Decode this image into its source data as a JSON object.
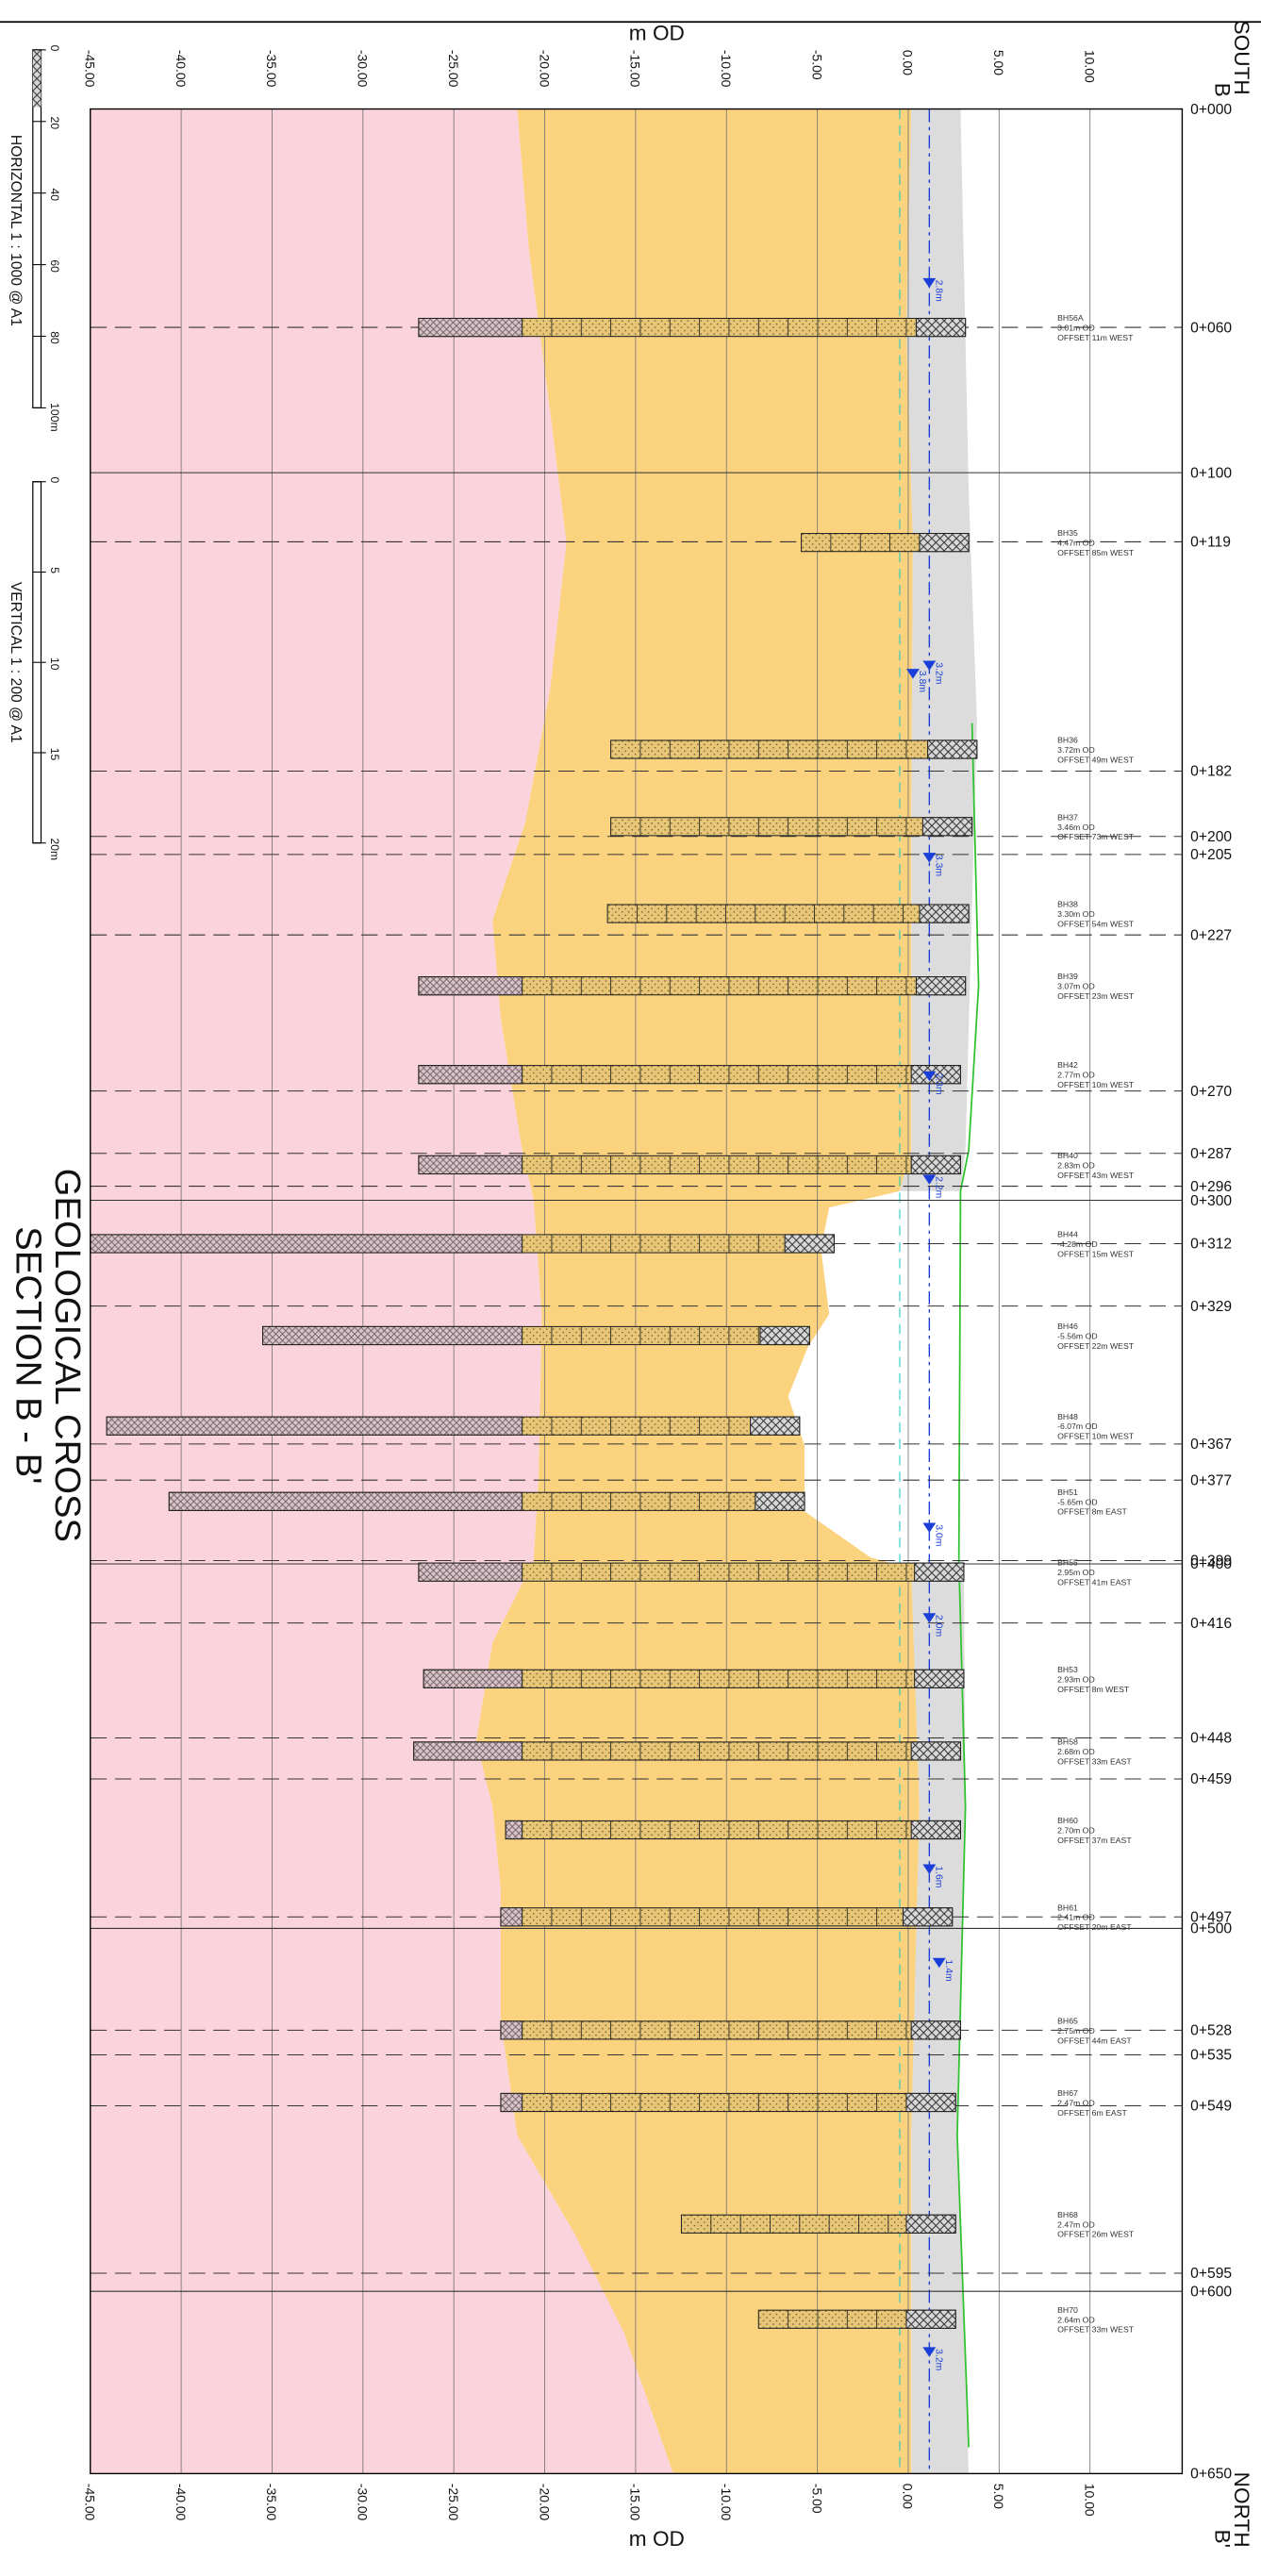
{
  "header": {
    "axis_title_top": "m OD",
    "axis_title_bottom": "m OD",
    "south": "SOUTH",
    "south_section": "B",
    "north": "NORTH",
    "north_section": "B'"
  },
  "title": [
    "GEOLOGICAL CROSS",
    "SECTION B - B'"
  ],
  "scales": {
    "horizontal": {
      "label": "HORIZONTAL 1 : 1000 @ A1",
      "ticks": [
        "0",
        "20",
        "40",
        "60",
        "80",
        "100m"
      ]
    },
    "vertical": {
      "label": "VERTICAL 1 : 200 @ A1",
      "ticks": [
        "0",
        "5",
        "10",
        "15",
        "20m"
      ]
    }
  },
  "elevation_ticks": [
    "-45.00",
    "-40.00",
    "-35.00",
    "-30.00",
    "-25.00",
    "-20.00",
    "-15.00",
    "-10.00",
    "-5.00",
    "0.00",
    "5.00",
    "10.00"
  ],
  "chainages": [
    "0+000",
    "0+060",
    "0+100",
    "0+119",
    "0+182",
    "0+200",
    "0+205",
    "0+227",
    "0+270",
    "0+287",
    "0+296",
    "0+300",
    "0+312",
    "0+329",
    "0+367",
    "0+377",
    "0+399",
    "0+400",
    "0+416",
    "0+448",
    "0+459",
    "0+497",
    "0+500",
    "0+528",
    "0+535",
    "0+549",
    "0+595",
    "0+600",
    "0+650"
  ],
  "boreholes": [
    {
      "name": "BH56A",
      "level": "3.01m OD",
      "offset": "OFFSET 11m WEST"
    },
    {
      "name": "BH35",
      "level": "4.47m OD",
      "offset": "OFFSET 85m WEST"
    },
    {
      "name": "BH36",
      "level": "3.72m OD",
      "offset": "OFFSET 49m WEST"
    },
    {
      "name": "BH37",
      "level": "3.46m OD",
      "offset": "OFFSET 73m WEST"
    },
    {
      "name": "BH38",
      "level": "3.30m OD",
      "offset": "OFFSET 54m WEST"
    },
    {
      "name": "BH39",
      "level": "3.07m OD",
      "offset": "OFFSET 23m WEST"
    },
    {
      "name": "BH42",
      "level": "2.77m OD",
      "offset": "OFFSET 10m WEST"
    },
    {
      "name": "BH40",
      "level": "2.83m OD",
      "offset": "OFFSET 43m WEST"
    },
    {
      "name": "BH44",
      "level": "-4.28m OD",
      "offset": "OFFSET 15m WEST"
    },
    {
      "name": "BH46",
      "level": "-5.56m OD",
      "offset": "OFFSET 22m WEST"
    },
    {
      "name": "BH48",
      "level": "-6.07m OD",
      "offset": "OFFSET 10m WEST"
    },
    {
      "name": "BH51",
      "level": "-5.65m OD",
      "offset": "OFFSET 8m EAST"
    },
    {
      "name": "BH55",
      "level": "2.95m OD",
      "offset": "OFFSET 41m EAST"
    },
    {
      "name": "BH53",
      "level": "2.93m OD",
      "offset": "OFFSET 8m WEST"
    },
    {
      "name": "BH58",
      "level": "2.68m OD",
      "offset": "OFFSET 33m EAST"
    },
    {
      "name": "BH60",
      "level": "2.70m OD",
      "offset": "OFFSET 37m EAST"
    },
    {
      "name": "BH61",
      "level": "2.41m OD",
      "offset": "OFFSET 20m EAST"
    },
    {
      "name": "BH65",
      "level": "2.75m OD",
      "offset": "OFFSET 44m EAST"
    },
    {
      "name": "BH67",
      "level": "2.47m OD",
      "offset": "OFFSET 6m EAST"
    },
    {
      "name": "BH68",
      "level": "2.47m OD",
      "offset": "OFFSET 26m WEST"
    },
    {
      "name": "BH70",
      "level": "2.64m OD",
      "offset": "OFFSET 33m WEST"
    }
  ],
  "water_levels": [
    "2.8m",
    "3.8m",
    "3.2m",
    "3.3m",
    "2.3m",
    "2.2m",
    "3.0m",
    "2.0m",
    "1.6m",
    "1.4m",
    "3.2m"
  ]
}
